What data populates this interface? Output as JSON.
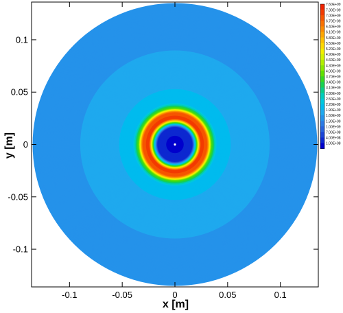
{
  "chart_data": {
    "type": "heatmap",
    "title": "",
    "xlabel": "x [m]",
    "ylabel": "y [m]",
    "xlim": [
      -0.136,
      0.136
    ],
    "ylim": [
      -0.136,
      0.136
    ],
    "grid": false,
    "x_ticks": [
      {
        "value": -0.1,
        "label": "-0.1"
      },
      {
        "value": -0.05,
        "label": "-0.05"
      },
      {
        "value": 0,
        "label": "0"
      },
      {
        "value": 0.05,
        "label": "0.05"
      },
      {
        "value": 0.1,
        "label": "0.1"
      }
    ],
    "y_ticks": [
      {
        "value": 0.1,
        "label": "0.1"
      },
      {
        "value": 0.05,
        "label": "0.05"
      },
      {
        "value": 0,
        "label": "0"
      },
      {
        "value": -0.05,
        "label": "-0.05"
      },
      {
        "value": -0.1,
        "label": "-0.1"
      }
    ],
    "domain_radius": 0.135,
    "radial_profile": [
      {
        "r": 0.0,
        "level": 100000000.0
      },
      {
        "r": 0.017,
        "level": 700000000.0
      },
      {
        "r": 0.0195,
        "level": 2500000000.0
      },
      {
        "r": 0.022,
        "level": 5000000000.0
      },
      {
        "r": 0.025,
        "level": 7600000000.0
      },
      {
        "r": 0.031,
        "level": 7000000000.0
      },
      {
        "r": 0.035,
        "level": 4000000000.0
      },
      {
        "r": 0.04,
        "level": 2400000000.0
      },
      {
        "r": 0.06,
        "level": 2100000000.0
      },
      {
        "r": 0.09,
        "level": 1900000000.0
      },
      {
        "r": 0.135,
        "level": 1800000000.0
      }
    ],
    "colorbar": {
      "position": "right",
      "levels": [
        {
          "label": "7.60E+09",
          "value": 7600000000.0,
          "color": "#ee2200"
        },
        {
          "label": "7.30E+09",
          "value": 7300000000.0,
          "color": "#f23a00"
        },
        {
          "label": "7.00E+09",
          "value": 7000000000.0,
          "color": "#f65500"
        },
        {
          "label": "6.70E+09",
          "value": 6700000000.0,
          "color": "#f87000"
        },
        {
          "label": "6.40E+09",
          "value": 6400000000.0,
          "color": "#fa8a00"
        },
        {
          "label": "6.10E+09",
          "value": 6100000000.0,
          "color": "#fca500"
        },
        {
          "label": "5.80E+09",
          "value": 5800000000.0,
          "color": "#fdbf00"
        },
        {
          "label": "5.50E+09",
          "value": 5500000000.0,
          "color": "#fed800"
        },
        {
          "label": "5.20E+09",
          "value": 5200000000.0,
          "color": "#f2ee00"
        },
        {
          "label": "4.90E+09",
          "value": 4900000000.0,
          "color": "#d4f200"
        },
        {
          "label": "4.60E+09",
          "value": 4600000000.0,
          "color": "#b0ee00"
        },
        {
          "label": "4.30E+09",
          "value": 4300000000.0,
          "color": "#88e800"
        },
        {
          "label": "4.00E+09",
          "value": 4000000000.0,
          "color": "#5ee000"
        },
        {
          "label": "3.70E+09",
          "value": 3700000000.0,
          "color": "#36d820"
        },
        {
          "label": "3.40E+09",
          "value": 3400000000.0,
          "color": "#18d050"
        },
        {
          "label": "3.10E+09",
          "value": 3100000000.0,
          "color": "#08cc88"
        },
        {
          "label": "2.80E+09",
          "value": 2800000000.0,
          "color": "#00ccbb"
        },
        {
          "label": "2.50E+09",
          "value": 2500000000.0,
          "color": "#00c8dd"
        },
        {
          "label": "2.20E+09",
          "value": 2200000000.0,
          "color": "#00bbee"
        },
        {
          "label": "1.90E+09",
          "value": 1900000000.0,
          "color": "#1fa9ee"
        },
        {
          "label": "1.60E+09",
          "value": 1600000000.0,
          "color": "#2592ea"
        },
        {
          "label": "1.30E+09",
          "value": 1300000000.0,
          "color": "#2b7ae4"
        },
        {
          "label": "1.00E+09",
          "value": 1000000000.0,
          "color": "#2862dc"
        },
        {
          "label": "7.00E+08",
          "value": 700000000.0,
          "color": "#1a44d6"
        },
        {
          "label": "4.00E+08",
          "value": 400000000.0,
          "color": "#0d28d0"
        },
        {
          "label": "1.00E+08",
          "value": 100000000.0,
          "color": "#0000cc"
        }
      ]
    }
  }
}
